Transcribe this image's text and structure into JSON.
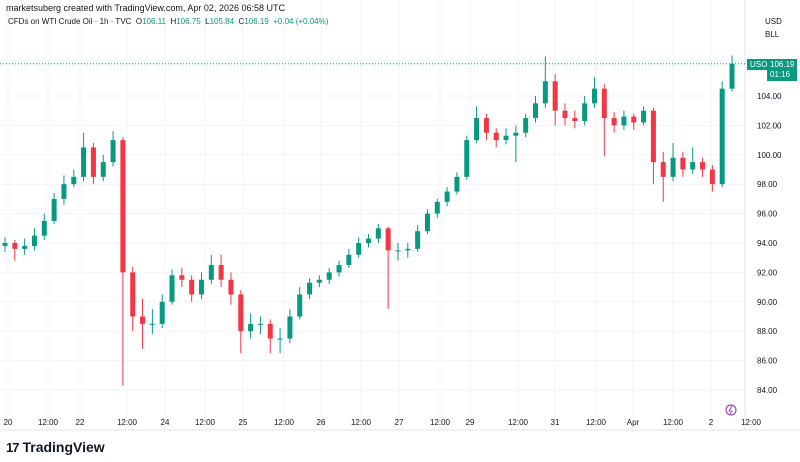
{
  "header": {
    "attribution": "marketsuberg created with TradingView.com, Apr 02, 2026 06:58 UTC"
  },
  "legend": {
    "symbol": "CFDs on WTI Crude Oil · 1h · TVC",
    "o_label": "O",
    "o": "106.11",
    "h_label": "H",
    "h": "106.75",
    "l_label": "L",
    "l": "105.84",
    "c_label": "C",
    "c": "106.19",
    "change": "+0.04 (+0.04%)"
  },
  "units": {
    "currency": "USD",
    "unit": "BLL"
  },
  "price_tag": {
    "symbol": "USOIL",
    "price": "106.19",
    "countdown": "01:16"
  },
  "brand": "TradingView",
  "colors": {
    "up": "#089981",
    "down": "#f23645",
    "last_price_line": "#089981"
  },
  "chart_data": {
    "type": "candlestick",
    "ylim": [
      82.5,
      108
    ],
    "y_ticks": [
      "84.00",
      "86.00",
      "88.00",
      "90.00",
      "92.00",
      "94.00",
      "96.00",
      "98.00",
      "100.00",
      "102.00",
      "104.00"
    ],
    "x_ticks": [
      "20",
      "12:00",
      "22",
      "12:00",
      "24",
      "12:00",
      "25",
      "12:00",
      "26",
      "12:00",
      "27",
      "12:00",
      "29",
      "12:00",
      "31",
      "12:00",
      "Apr",
      "12:00",
      "2",
      "12:00"
    ],
    "grid": true,
    "last_price": 106.19,
    "ohlc": [
      [
        93.8,
        94.4,
        93.4,
        94.0
      ],
      [
        94.0,
        94.2,
        92.8,
        93.6
      ],
      [
        93.6,
        94.3,
        93.2,
        93.8
      ],
      [
        93.8,
        95.0,
        93.5,
        94.5
      ],
      [
        94.5,
        96.0,
        94.2,
        95.5
      ],
      [
        95.5,
        97.4,
        95.3,
        97.0
      ],
      [
        97.0,
        98.6,
        96.6,
        98.0
      ],
      [
        98.0,
        99.0,
        97.8,
        98.5
      ],
      [
        98.5,
        101.5,
        98.2,
        100.5
      ],
      [
        100.5,
        100.8,
        98.0,
        98.5
      ],
      [
        98.5,
        100.0,
        98.2,
        99.5
      ],
      [
        99.5,
        101.6,
        99.2,
        101.0
      ],
      [
        101.0,
        101.2,
        84.3,
        92.0
      ],
      [
        92.0,
        92.4,
        88.0,
        89.0
      ],
      [
        89.0,
        90.2,
        86.8,
        88.5
      ],
      [
        88.5,
        89.5,
        87.8,
        88.5
      ],
      [
        88.5,
        90.5,
        88.2,
        90.0
      ],
      [
        90.0,
        92.2,
        89.8,
        91.8
      ],
      [
        91.8,
        92.3,
        91.0,
        91.5
      ],
      [
        91.5,
        91.8,
        90.0,
        90.5
      ],
      [
        90.5,
        92.0,
        90.2,
        91.5
      ],
      [
        91.5,
        93.2,
        91.2,
        92.5
      ],
      [
        92.5,
        93.2,
        91.0,
        91.5
      ],
      [
        91.5,
        92.0,
        89.8,
        90.5
      ],
      [
        90.5,
        90.8,
        86.5,
        88.0
      ],
      [
        88.0,
        89.2,
        87.5,
        88.5
      ],
      [
        88.5,
        89.0,
        87.8,
        88.5
      ],
      [
        88.5,
        88.8,
        86.5,
        87.5
      ],
      [
        87.5,
        88.2,
        86.5,
        87.5
      ],
      [
        87.5,
        89.5,
        87.2,
        89.0
      ],
      [
        89.0,
        91.0,
        88.8,
        90.5
      ],
      [
        90.5,
        91.6,
        90.2,
        91.3
      ],
      [
        91.3,
        91.8,
        91.0,
        91.5
      ],
      [
        91.5,
        92.3,
        91.2,
        92.0
      ],
      [
        92.0,
        92.8,
        91.7,
        92.5
      ],
      [
        92.5,
        93.6,
        92.3,
        93.2
      ],
      [
        93.2,
        94.4,
        93.0,
        94.0
      ],
      [
        94.0,
        94.6,
        93.7,
        94.3
      ],
      [
        94.3,
        95.3,
        94.0,
        95.0
      ],
      [
        95.0,
        95.1,
        89.5,
        93.5
      ],
      [
        93.5,
        94.0,
        92.8,
        93.5
      ],
      [
        93.5,
        94.0,
        93.0,
        93.6
      ],
      [
        93.6,
        95.2,
        93.4,
        94.8
      ],
      [
        94.8,
        96.3,
        94.6,
        96.0
      ],
      [
        96.0,
        97.0,
        95.7,
        96.8
      ],
      [
        96.8,
        97.8,
        96.5,
        97.5
      ],
      [
        97.5,
        98.8,
        97.3,
        98.5
      ],
      [
        98.5,
        101.3,
        98.3,
        101.0
      ],
      [
        101.0,
        103.3,
        100.8,
        102.5
      ],
      [
        102.5,
        102.8,
        101.0,
        101.5
      ],
      [
        101.5,
        101.8,
        100.5,
        101.0
      ],
      [
        101.0,
        101.8,
        100.7,
        101.3
      ],
      [
        101.3,
        102.0,
        99.5,
        101.5
      ],
      [
        101.5,
        102.8,
        101.2,
        102.5
      ],
      [
        102.5,
        104.0,
        102.2,
        103.5
      ],
      [
        103.5,
        106.7,
        103.2,
        105.0
      ],
      [
        105.0,
        105.5,
        102.0,
        103.0
      ],
      [
        103.0,
        103.5,
        102.0,
        102.5
      ],
      [
        102.5,
        103.0,
        101.8,
        102.3
      ],
      [
        102.3,
        104.0,
        102.0,
        103.5
      ],
      [
        103.5,
        105.3,
        103.2,
        104.5
      ],
      [
        104.5,
        104.8,
        99.9,
        102.5
      ],
      [
        102.5,
        102.9,
        101.5,
        102.0
      ],
      [
        102.0,
        103.0,
        101.7,
        102.6
      ],
      [
        102.6,
        102.8,
        101.7,
        102.2
      ],
      [
        102.2,
        103.3,
        102.0,
        103.0
      ],
      [
        103.0,
        103.2,
        98.0,
        99.5
      ],
      [
        99.5,
        100.2,
        96.8,
        98.5
      ],
      [
        98.5,
        100.8,
        98.2,
        99.8
      ],
      [
        99.8,
        100.2,
        98.5,
        99.0
      ],
      [
        99.0,
        100.5,
        98.7,
        99.5
      ],
      [
        99.5,
        99.8,
        98.5,
        99.0
      ],
      [
        99.0,
        99.3,
        97.5,
        98.0
      ],
      [
        98.0,
        105.0,
        97.8,
        104.5
      ],
      [
        104.5,
        106.75,
        104.3,
        106.19
      ]
    ]
  }
}
